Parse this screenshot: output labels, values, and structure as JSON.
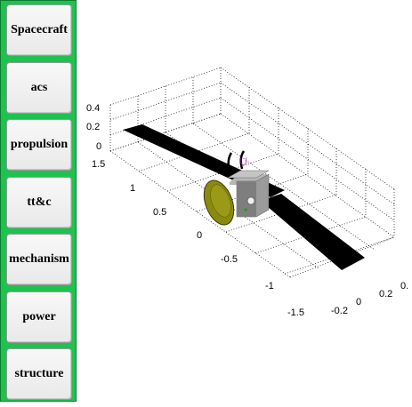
{
  "sidebar": {
    "buttons": [
      {
        "label": "Spacecraft"
      },
      {
        "label": "acs"
      },
      {
        "label": "propulsion"
      },
      {
        "label": "tt&c"
      },
      {
        "label": "mechanism"
      },
      {
        "label": "power"
      },
      {
        "label": "structure"
      }
    ]
  },
  "plot": {
    "z_ticks": [
      "0.4",
      "0.2",
      "0"
    ],
    "y_ticks": [
      "1.5",
      "1",
      "0.5",
      "0",
      "-0.5",
      "-1",
      "-1.5"
    ],
    "x_ticks": [
      "-0.2",
      "0",
      "0.2",
      "0."
    ],
    "colors": {
      "panel": "#000000",
      "body": "#8f8f8f",
      "antenna": "#8a8a10",
      "marker": "#cc00cc",
      "green_marker": "#00aa00"
    }
  }
}
